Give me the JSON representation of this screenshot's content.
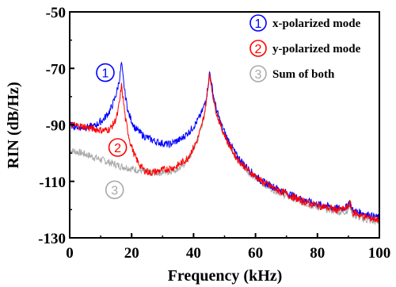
{
  "chart_data": {
    "type": "line",
    "xlabel": "Frequency (kHz)",
    "ylabel": "RIN (dB/Hz)",
    "xlim": [
      0,
      100
    ],
    "ylim": [
      -130,
      -50
    ],
    "xticks": [
      0,
      20,
      40,
      60,
      80,
      100
    ],
    "yticks": [
      -50,
      -70,
      -90,
      -110,
      -130
    ],
    "xtick_labels": [
      "0",
      "20",
      "40",
      "60",
      "80",
      "100"
    ],
    "ytick_labels": [
      "-50",
      "-70",
      "-90",
      "-110",
      "-130"
    ],
    "grid": false,
    "legend": {
      "placement": "top-right",
      "entries": [
        {
          "marker": "1",
          "label": "x-polarized mode",
          "color": "#0000ff"
        },
        {
          "marker": "2",
          "label": "y-polarized mode",
          "color": "#ff0000"
        },
        {
          "marker": "3",
          "label": "Sum of both",
          "color": "#a9a9a9"
        }
      ]
    },
    "series": [
      {
        "marker": "1",
        "color": "#0000ff",
        "x": [
          0,
          4,
          8,
          11,
          13,
          14.5,
          15.5,
          16.2,
          16.7,
          17.2,
          18,
          19,
          21,
          24,
          28,
          32,
          36,
          39,
          41,
          42.5,
          43.5,
          44.3,
          44.8,
          45.2,
          45.7,
          46.5,
          47.5,
          49,
          51,
          54,
          58,
          62,
          66,
          70,
          74,
          78,
          82,
          86,
          88,
          89.5,
          90.3,
          91.5,
          94,
          97,
          100
        ],
        "y": [
          -90,
          -91,
          -90.5,
          -88,
          -85,
          -81,
          -77,
          -73,
          -68,
          -73,
          -80,
          -86,
          -91,
          -94,
          -96,
          -97,
          -95,
          -92,
          -89,
          -86,
          -83,
          -79,
          -75,
          -71,
          -75,
          -80,
          -85,
          -90,
          -95,
          -101,
          -106,
          -110,
          -112,
          -114,
          -116,
          -117.5,
          -118.5,
          -119.5,
          -119.5,
          -119,
          -117,
          -120.5,
          -121,
          -122,
          -123
        ]
      },
      {
        "marker": "2",
        "color": "#ff0000",
        "x": [
          0,
          4,
          8,
          11,
          13,
          14.5,
          15.5,
          16.2,
          16.7,
          17.2,
          18,
          19.5,
          21,
          22.5,
          24,
          26,
          30,
          34,
          38,
          41,
          42.5,
          43.5,
          44.3,
          44.8,
          45.2,
          45.7,
          46.5,
          47.5,
          49,
          51,
          54,
          58,
          62,
          66,
          70,
          74,
          78,
          82,
          86,
          88,
          89.5,
          90.5,
          91.5,
          94,
          97,
          100
        ],
        "y": [
          -90,
          -90.5,
          -91.5,
          -92,
          -91.5,
          -89,
          -86,
          -81,
          -76,
          -80,
          -88,
          -96,
          -101,
          -104,
          -106,
          -107,
          -106,
          -105,
          -102,
          -96,
          -91,
          -86,
          -80,
          -75,
          -71,
          -76,
          -81,
          -86,
          -91,
          -96,
          -102,
          -106.5,
          -110,
          -112.5,
          -114.5,
          -116.5,
          -118,
          -119,
          -120,
          -120,
          -119.5,
          -117.5,
          -121,
          -122,
          -123,
          -123.5
        ]
      },
      {
        "marker": "3",
        "color": "#a9a9a9",
        "x": [
          0,
          4,
          8,
          12,
          16,
          20,
          24,
          28,
          32,
          36,
          39,
          41,
          42.5,
          43.5,
          44.3,
          44.8,
          45.2,
          45.7,
          46.5,
          47.5,
          49,
          51,
          54,
          58,
          62,
          66,
          70,
          74,
          78,
          82,
          86,
          88,
          89.5,
          90.5,
          91.5,
          94,
          97,
          100
        ],
        "y": [
          -99,
          -100,
          -101.5,
          -103,
          -104.5,
          -105.5,
          -106.5,
          -107,
          -106.5,
          -105,
          -101,
          -96,
          -91,
          -86,
          -80,
          -75,
          -72,
          -76,
          -81,
          -86,
          -91,
          -96,
          -102,
          -107,
          -110.5,
          -113,
          -115,
          -117,
          -118.5,
          -119.5,
          -120.5,
          -121,
          -120.5,
          -118.5,
          -122,
          -123,
          -124,
          -124.5
        ]
      }
    ],
    "markers": [
      {
        "label": "1",
        "x": 11.5,
        "y": -71.5,
        "color": "#0000ff"
      },
      {
        "label": "2",
        "x": 15.5,
        "y": -98,
        "color": "#ff0000"
      },
      {
        "label": "3",
        "x": 14.5,
        "y": -113,
        "color": "#a9a9a9"
      }
    ]
  }
}
